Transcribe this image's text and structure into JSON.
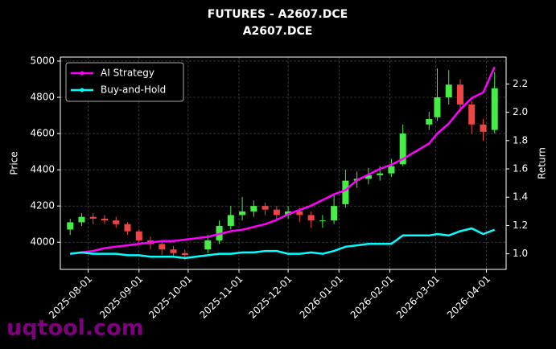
{
  "chart_data": {
    "type": "candlestick",
    "title": "FUTURES - A2607.DCE",
    "subtitle": "A2607.DCE",
    "ylabel": "Price",
    "y2label": "Return",
    "watermark": "uqtool.com",
    "x": [
      "2025-07-21",
      "2025-07-28",
      "2025-08-04",
      "2025-08-11",
      "2025-08-18",
      "2025-08-25",
      "2025-09-01",
      "2025-09-08",
      "2025-09-15",
      "2025-09-22",
      "2025-09-29",
      "2025-10-13",
      "2025-10-20",
      "2025-10-27",
      "2025-11-03",
      "2025-11-10",
      "2025-11-17",
      "2025-11-24",
      "2025-12-01",
      "2025-12-08",
      "2025-12-15",
      "2025-12-22",
      "2025-12-29",
      "2026-01-05",
      "2026-01-12",
      "2026-01-19",
      "2026-01-26",
      "2026-02-02",
      "2026-02-09",
      "2026-02-25",
      "2026-03-02",
      "2026-03-09",
      "2026-03-16",
      "2026-03-23",
      "2026-03-30",
      "2026-04-06"
    ],
    "open": [
      4070,
      4110,
      4140,
      4130,
      4120,
      4100,
      4060,
      4010,
      3990,
      3960,
      3940,
      3960,
      4010,
      4090,
      4150,
      4170,
      4200,
      4180,
      4150,
      4170,
      4150,
      4120,
      4120,
      4210,
      4340,
      4350,
      4370,
      4380,
      4430,
      4650,
      4690,
      4800,
      4870,
      4760,
      4650,
      4620
    ],
    "high": [
      4130,
      4160,
      4160,
      4150,
      4140,
      4110,
      4070,
      4030,
      4010,
      3980,
      3960,
      4040,
      4120,
      4200,
      4250,
      4230,
      4220,
      4200,
      4200,
      4190,
      4170,
      4150,
      4260,
      4400,
      4390,
      4410,
      4420,
      4460,
      4650,
      4720,
      4960,
      4950,
      4900,
      4780,
      4680,
      4940
    ],
    "low": [
      4040,
      4090,
      4100,
      4100,
      4080,
      4040,
      3990,
      3960,
      3930,
      3920,
      3900,
      3940,
      3990,
      4070,
      4120,
      4140,
      4150,
      4120,
      4130,
      4110,
      4080,
      4080,
      4100,
      4190,
      4300,
      4320,
      4340,
      4360,
      4420,
      4620,
      4670,
      4760,
      4720,
      4600,
      4560,
      4600
    ],
    "close": [
      4110,
      4140,
      4130,
      4120,
      4100,
      4060,
      4010,
      3990,
      3960,
      3940,
      3930,
      4010,
      4090,
      4150,
      4170,
      4200,
      4180,
      4150,
      4170,
      4150,
      4120,
      4120,
      4200,
      4340,
      4350,
      4370,
      4380,
      4420,
      4600,
      4680,
      4800,
      4870,
      4760,
      4650,
      4610,
      4850
    ],
    "up_color": "#44ee44",
    "down_color": "#ee4444",
    "series": [
      {
        "name": "AI Strategy",
        "color": "#ff00ff",
        "axis": "y2",
        "values": [
          1.0,
          1.01,
          1.02,
          1.04,
          1.05,
          1.06,
          1.07,
          1.08,
          1.09,
          1.09,
          1.1,
          1.12,
          1.14,
          1.16,
          1.17,
          1.19,
          1.21,
          1.24,
          1.28,
          1.31,
          1.34,
          1.38,
          1.42,
          1.45,
          1.52,
          1.56,
          1.6,
          1.63,
          1.67,
          1.78,
          1.85,
          1.92,
          2.02,
          2.1,
          2.14,
          2.32
        ]
      },
      {
        "name": "Buy-and-Hold",
        "color": "#00ffff",
        "axis": "y2",
        "values": [
          1.0,
          1.01,
          1.0,
          1.0,
          1.0,
          0.99,
          0.99,
          0.98,
          0.98,
          0.98,
          0.97,
          0.99,
          1.0,
          1.0,
          1.01,
          1.01,
          1.02,
          1.02,
          1.0,
          1.0,
          1.01,
          1.0,
          1.02,
          1.05,
          1.06,
          1.07,
          1.07,
          1.07,
          1.13,
          1.13,
          1.14,
          1.13,
          1.16,
          1.18,
          1.14,
          1.17
        ]
      }
    ],
    "xlim": [
      "2025-07-15",
      "2026-04-13"
    ],
    "xticks": [
      "2025-08-01",
      "2025-09-01",
      "2025-10-01",
      "2025-11-01",
      "2025-12-01",
      "2026-01-01",
      "2026-02-01",
      "2026-03-01",
      "2026-04-01"
    ],
    "ylim": [
      3850,
      5022
    ],
    "yticks": [
      4000,
      4200,
      4400,
      4600,
      4800,
      5000
    ],
    "y2lim": [
      0.89,
      2.39
    ],
    "y2ticks": [
      {
        "value": 1,
        "label": "1.0"
      },
      1.2,
      1.4,
      1.6,
      1.8,
      {
        "value": 2,
        "label": "2.0"
      },
      2.2
    ],
    "grid": true,
    "legend": "upper left"
  }
}
